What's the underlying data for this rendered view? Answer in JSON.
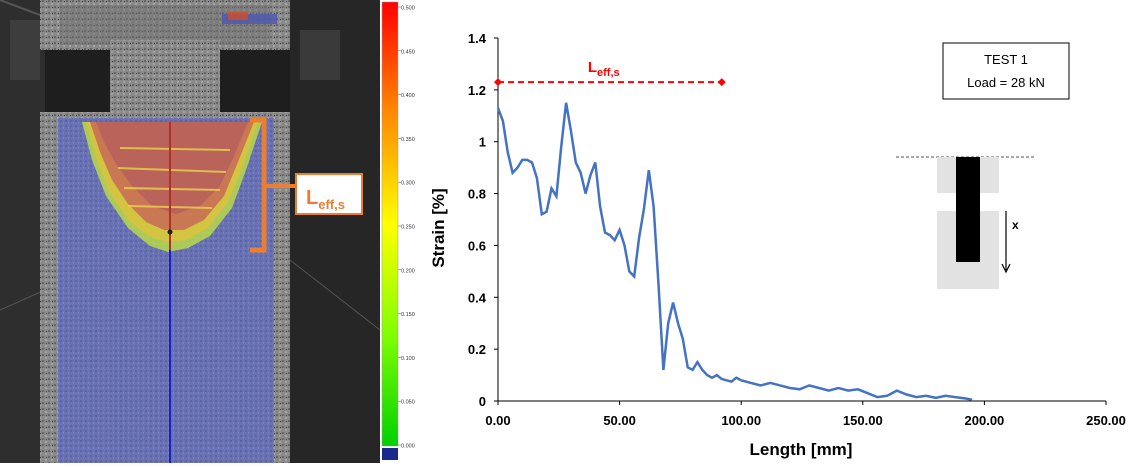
{
  "photo": {
    "annotation_main": "L",
    "annotation_sub": "eff,s",
    "annotation_color": "#ED7D31"
  },
  "colorbar": {
    "ticks": [
      "0.500",
      "0.450",
      "0.400",
      "0.350",
      "0.300",
      "0.250",
      "0.200",
      "0.150",
      "0.100",
      "0.050",
      "0.000"
    ]
  },
  "chart_data": {
    "type": "line",
    "xlabel": "Length [mm]",
    "ylabel": "Strain [%]",
    "xlim": [
      0,
      250
    ],
    "ylim": [
      0,
      1.4
    ],
    "x_ticks": [
      "0.00",
      "50.00",
      "100.00",
      "150.00",
      "200.00",
      "250.00"
    ],
    "y_ticks": [
      "0",
      "0.2",
      "0.4",
      "0.6",
      "0.8",
      "1",
      "1.2",
      "1.4"
    ],
    "grid": false,
    "series": [
      {
        "color": "#4472C4",
        "x": [
          0,
          2,
          4,
          6,
          8,
          10,
          12,
          14,
          16,
          18,
          20,
          22,
          24,
          26,
          28,
          30,
          32,
          34,
          36,
          38,
          40,
          42,
          44,
          46,
          48,
          50,
          52,
          54,
          56,
          58,
          60,
          62,
          64,
          66,
          68,
          70,
          72,
          74,
          76,
          78,
          80,
          82,
          84,
          86,
          88,
          90,
          92,
          94,
          96,
          98,
          100,
          104,
          108,
          112,
          116,
          120,
          124,
          128,
          132,
          136,
          140,
          144,
          148,
          152,
          156,
          160,
          164,
          168,
          172,
          176,
          180,
          184,
          188,
          192,
          195
        ],
        "y": [
          1.13,
          1.08,
          0.96,
          0.88,
          0.9,
          0.93,
          0.93,
          0.92,
          0.86,
          0.72,
          0.73,
          0.82,
          0.79,
          0.98,
          1.15,
          1.04,
          0.92,
          0.88,
          0.8,
          0.87,
          0.92,
          0.75,
          0.65,
          0.64,
          0.62,
          0.66,
          0.6,
          0.5,
          0.48,
          0.63,
          0.74,
          0.89,
          0.75,
          0.45,
          0.12,
          0.3,
          0.38,
          0.3,
          0.24,
          0.13,
          0.12,
          0.15,
          0.12,
          0.1,
          0.09,
          0.1,
          0.085,
          0.08,
          0.075,
          0.09,
          0.08,
          0.07,
          0.06,
          0.07,
          0.06,
          0.05,
          0.045,
          0.06,
          0.05,
          0.04,
          0.05,
          0.04,
          0.045,
          0.03,
          0.015,
          0.02,
          0.04,
          0.025,
          0.015,
          0.02,
          0.012,
          0.02,
          0.015,
          0.01,
          0.005
        ]
      }
    ],
    "reference_line": {
      "label_main": "L",
      "label_sub": "eff,s",
      "y": 1.23,
      "x": [
        0,
        92
      ],
      "color": "#FF0000"
    },
    "textbox_lines": [
      "TEST 1",
      "Load = 28 kN"
    ],
    "inset_label": "x"
  }
}
